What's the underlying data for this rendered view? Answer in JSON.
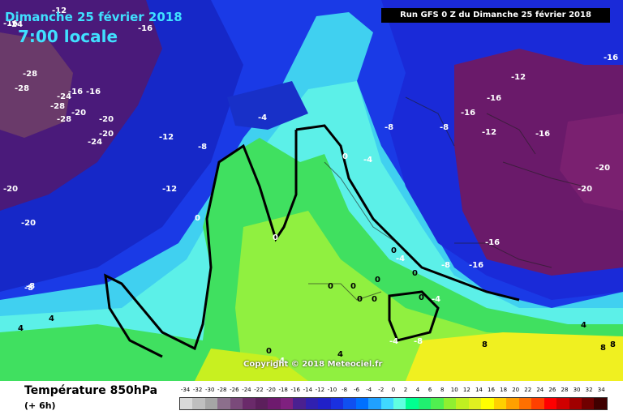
{
  "header": {
    "date": "Dimanche 25 février 2018",
    "time": "7:00 locale",
    "run": "Run GFS 0 Z du Dimanche 25 février 2018"
  },
  "copyright": "Copyright © 2018 Meteociel.fr",
  "legend": {
    "title": "Température 850hPa",
    "subtitle": "(+ 6h)",
    "values": [
      "-34",
      "-32",
      "-30",
      "-28",
      "-26",
      "-24",
      "-22",
      "-20",
      "-18",
      "-16",
      "-14",
      "-12",
      "-10",
      "-8",
      "-6",
      "-4",
      "-2",
      "0",
      "2",
      "4",
      "6",
      "8",
      "10",
      "12",
      "14",
      "16",
      "18",
      "20",
      "22",
      "24",
      "26",
      "28",
      "30",
      "32",
      "34"
    ],
    "colors": [
      "#d9d9d9",
      "#bfbfbf",
      "#a6a6a6",
      "#8c6f8c",
      "#7a4a7a",
      "#6a2a6a",
      "#5c1f5c",
      "#6e1a6e",
      "#7f207f",
      "#4a2090",
      "#3020b0",
      "#2020c8",
      "#1a30e0",
      "#1050f0",
      "#0070ff",
      "#20a0ff",
      "#40d8ff",
      "#60ffe0",
      "#00ff90",
      "#20f070",
      "#50f050",
      "#90f030",
      "#c0f020",
      "#e0f020",
      "#ffff00",
      "#ffd000",
      "#ffa000",
      "#ff7000",
      "#ff4000",
      "#ff0000",
      "#d00000",
      "#a00000",
      "#700000",
      "#400000"
    ]
  },
  "map_labels": [
    "-16",
    "-12",
    "-24",
    "-16",
    "-28",
    "-28",
    "-24",
    "-16",
    "-16",
    "-20",
    "-28",
    "-28",
    "-20",
    "-20",
    "-24",
    "-12",
    "-8",
    "-20",
    "-12",
    "-20",
    "0",
    "0",
    "-8",
    "-4",
    "-4",
    "0",
    "-8",
    "-8",
    "-12",
    "-16",
    "-16",
    "-12",
    "-16",
    "-16",
    "-20",
    "-20",
    "-16",
    "-16",
    "-8",
    "-4",
    "0",
    "0",
    "0",
    "0",
    "0",
    "0",
    "0",
    "-4",
    "0",
    "-8",
    "-4",
    "4",
    "4",
    "0",
    "4",
    "4",
    "8",
    "8",
    "8",
    "-8",
    "-4"
  ],
  "colors": {
    "cold_deep": "#6a1a6a",
    "blue": "#1a2ad0",
    "cyan": "#40e0ff",
    "green": "#50f050",
    "yellow": "#f0f020"
  }
}
